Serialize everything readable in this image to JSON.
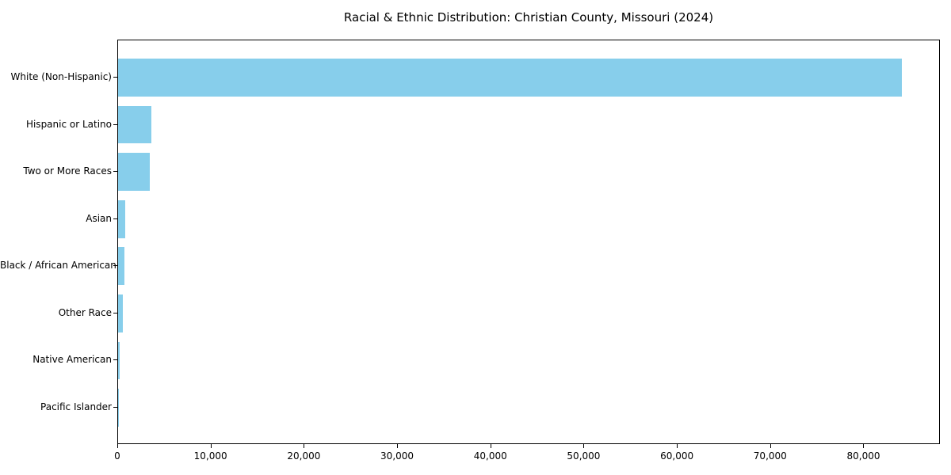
{
  "title": "Racial & Ethnic Distribution: Christian County, Missouri (2024)",
  "chart_data": {
    "type": "bar",
    "orientation": "horizontal",
    "title": "Racial & Ethnic Distribution: Christian County, Missouri (2024)",
    "xlabel": "",
    "ylabel": "",
    "categories": [
      "White (Non-Hispanic)",
      "Hispanic or Latino",
      "Two or More Races",
      "Asian",
      "Black / African American",
      "Other Race",
      "Native American",
      "Pacific Islander"
    ],
    "values": [
      84000,
      3600,
      3400,
      760,
      660,
      480,
      130,
      60
    ],
    "xlim": [
      0,
      88200
    ],
    "x_ticks": [
      0,
      10000,
      20000,
      30000,
      40000,
      50000,
      60000,
      70000,
      80000
    ],
    "x_tick_labels": [
      "0",
      "10,000",
      "20,000",
      "30,000",
      "40,000",
      "50,000",
      "60,000",
      "70,000",
      "80,000"
    ],
    "bar_color": "#87CEEB",
    "axis_color": "#000000",
    "grid": false,
    "legend_position": "none"
  }
}
